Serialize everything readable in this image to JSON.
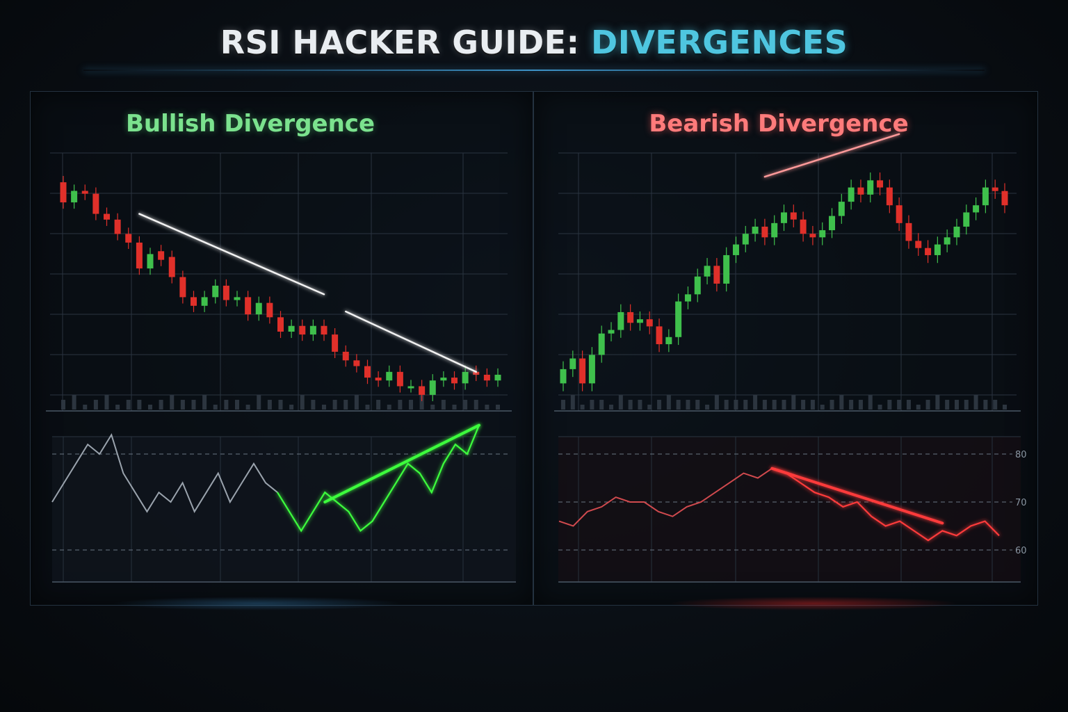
{
  "title": {
    "main": "RSI HACKER GUIDE:",
    "accent": "DIVERGENCES"
  },
  "colors": {
    "bull": "#3fc04c",
    "bear": "#e0302a",
    "bull_glow": "#3dff3d",
    "bear_glow": "#ff3b3b",
    "accent": "#4fc6e0"
  },
  "chart_data": [
    {
      "type": "candlestick",
      "title": "Bullish Divergence",
      "price": {
        "opens": [
          85,
          78,
          82,
          81,
          74,
          72,
          67,
          64,
          55,
          61,
          59,
          52,
          45,
          42,
          45,
          49,
          44,
          45,
          39,
          43,
          38,
          33,
          35,
          32,
          35,
          32,
          26,
          23,
          21,
          17,
          16,
          19,
          14,
          14,
          11,
          16,
          17,
          15,
          19,
          18,
          16
        ],
        "closes": [
          78,
          82,
          81,
          74,
          72,
          67,
          64,
          55,
          60,
          58,
          52,
          45,
          42,
          45,
          49,
          44,
          45,
          39,
          43,
          38,
          33,
          35,
          32,
          35,
          32,
          26,
          23,
          21,
          17,
          16,
          19,
          14,
          14,
          11,
          16,
          17,
          15,
          19,
          18,
          16,
          18
        ],
        "trendlines": [
          {
            "x": [
              7,
              24
            ],
            "y": [
              74,
              46
            ]
          },
          {
            "x": [
              26,
              38
            ],
            "y": [
              40,
              19
            ]
          }
        ]
      },
      "volume": [
        2,
        3,
        1,
        2,
        3,
        1,
        2,
        2,
        1,
        2,
        3,
        2,
        2,
        3,
        1,
        2,
        2,
        1,
        3,
        2,
        2,
        1,
        3,
        2,
        1,
        2,
        2,
        3,
        1,
        2,
        1,
        2,
        2,
        3,
        1,
        2,
        1,
        2,
        2,
        1,
        1
      ],
      "rsi": {
        "values": [
          40,
          42,
          44,
          46,
          45,
          47,
          43,
          41,
          39,
          41,
          40,
          42,
          39,
          41,
          43,
          40,
          42,
          44,
          42,
          41,
          39,
          37,
          39,
          41,
          40,
          39,
          37,
          38,
          40,
          42,
          44,
          43,
          41,
          44,
          46,
          45,
          48
        ],
        "divergence_line": {
          "x": [
            23,
            36
          ],
          "y": [
            40,
            48
          ]
        },
        "levels": [
          45,
          35
        ]
      }
    },
    {
      "type": "candlestick",
      "title": "Bearish Divergence",
      "price": {
        "opens": [
          10,
          14,
          17,
          10,
          18,
          24,
          25,
          30,
          27,
          28,
          26,
          21,
          23,
          33,
          35,
          40,
          43,
          38,
          46,
          49,
          52,
          54,
          51,
          55,
          58,
          56,
          52,
          51,
          53,
          57,
          61,
          65,
          63,
          67,
          65,
          60,
          55,
          50,
          48,
          46,
          49,
          51,
          54,
          58,
          60,
          65,
          64
        ],
        "closes": [
          14,
          17,
          10,
          18,
          24,
          25,
          30,
          27,
          28,
          26,
          21,
          23,
          33,
          35,
          40,
          43,
          38,
          46,
          49,
          52,
          54,
          51,
          55,
          58,
          56,
          52,
          51,
          53,
          57,
          61,
          65,
          63,
          67,
          65,
          60,
          55,
          50,
          48,
          46,
          49,
          51,
          54,
          58,
          60,
          65,
          64,
          60
        ],
        "trendlines": [
          {
            "x": [
              21,
              35
            ],
            "y": [
              68,
              80
            ]
          }
        ]
      },
      "volume": [
        2,
        3,
        1,
        2,
        2,
        1,
        3,
        2,
        2,
        1,
        2,
        3,
        2,
        2,
        2,
        1,
        3,
        2,
        2,
        2,
        3,
        2,
        2,
        2,
        3,
        2,
        2,
        1,
        2,
        3,
        2,
        2,
        3,
        1,
        2,
        2,
        2,
        1,
        2,
        3,
        2,
        2,
        2,
        3,
        2,
        2,
        1
      ],
      "rsi": {
        "values": [
          66,
          65,
          68,
          69,
          71,
          70,
          70,
          68,
          67,
          69,
          70,
          72,
          74,
          76,
          75,
          77,
          76,
          74,
          72,
          71,
          69,
          70,
          67,
          65,
          66,
          64,
          62,
          64,
          63,
          65,
          66,
          63
        ],
        "divergence_line": {
          "x": [
            15,
            27
          ],
          "y": [
            77,
            65.6
          ]
        },
        "levels": [
          80,
          70,
          60
        ],
        "tick_labels": [
          "80",
          "70",
          "60"
        ]
      }
    }
  ]
}
